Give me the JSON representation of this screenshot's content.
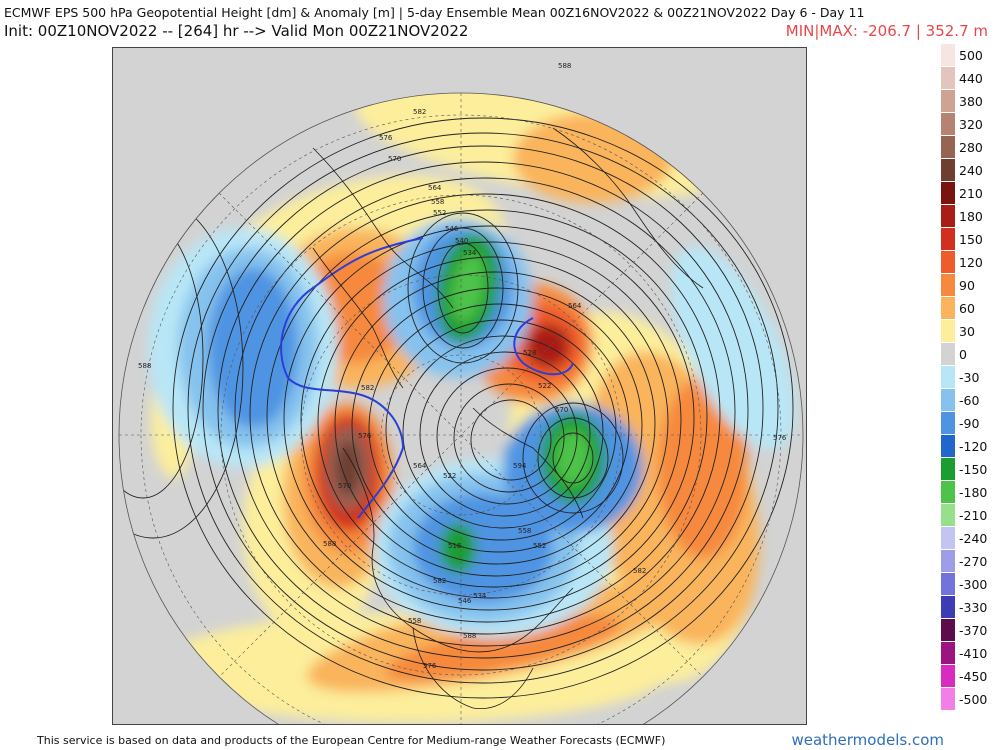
{
  "header": {
    "title": "ECMWF EPS 500 hPa Geopotential Height [dm] & Anomaly [m] | 5-day Ensemble Mean 00Z16NOV2022 & 00Z21NOV2022   Day 6 - Day 11",
    "init": "Init: 00Z10NOV2022 -- [264] hr --> Valid Mon 00Z21NOV2022",
    "minmax": "MIN|MAX: -206.7 | 352.7 m"
  },
  "map": {
    "projection": "north-polar-stereographic",
    "contour_labels": [
      "588",
      "582",
      "576",
      "570",
      "564",
      "558",
      "552",
      "546",
      "540",
      "534",
      "528",
      "522",
      "516",
      "522",
      "534",
      "546",
      "558",
      "564",
      "570",
      "576",
      "582",
      "588",
      "594",
      "588",
      "582",
      "576",
      "570",
      "564",
      "558",
      "552",
      "588",
      "582",
      "576"
    ],
    "colors": {
      "land_outline": "#1a1a1a",
      "outside": "#d3d3d3",
      "height_contour": "#222222",
      "contour_540": "#2a3fd8"
    }
  },
  "legend": {
    "items": [
      {
        "label": "500",
        "color": "#f6e6e2"
      },
      {
        "label": "440",
        "color": "#e3c5bd"
      },
      {
        "label": "380",
        "color": "#cfa394"
      },
      {
        "label": "320",
        "color": "#b48373"
      },
      {
        "label": "280",
        "color": "#956452"
      },
      {
        "label": "240",
        "color": "#6e3e30"
      },
      {
        "label": "210",
        "color": "#7a140e"
      },
      {
        "label": "180",
        "color": "#a81e14"
      },
      {
        "label": "150",
        "color": "#d1301e"
      },
      {
        "label": "120",
        "color": "#ee5c2c"
      },
      {
        "label": "90",
        "color": "#f6893e"
      },
      {
        "label": "60",
        "color": "#f9b45c"
      },
      {
        "label": "30",
        "color": "#fcee9b"
      },
      {
        "label": "0",
        "color": "#d3d3d3"
      },
      {
        "label": "-30",
        "color": "#b8e6f6"
      },
      {
        "label": "-60",
        "color": "#86c2ee"
      },
      {
        "label": "-90",
        "color": "#4f94e2"
      },
      {
        "label": "-120",
        "color": "#2166cc"
      },
      {
        "label": "-150",
        "color": "#1b9d32"
      },
      {
        "label": "-180",
        "color": "#4ec34a"
      },
      {
        "label": "-210",
        "color": "#96e08c"
      },
      {
        "label": "-240",
        "color": "#c4c4f2"
      },
      {
        "label": "-270",
        "color": "#9e9ee8"
      },
      {
        "label": "-300",
        "color": "#7274dc"
      },
      {
        "label": "-330",
        "color": "#3c3cb4"
      },
      {
        "label": "-370",
        "color": "#5c0c4a"
      },
      {
        "label": "-410",
        "color": "#9c1482"
      },
      {
        "label": "-450",
        "color": "#d82cc0"
      },
      {
        "label": "-500",
        "color": "#f27ee6"
      }
    ]
  },
  "footer": {
    "credit": "This service is based on data and products of the European Centre for Medium-range Weather Forecasts (ECMWF)",
    "brand": "weathermodels.com"
  }
}
